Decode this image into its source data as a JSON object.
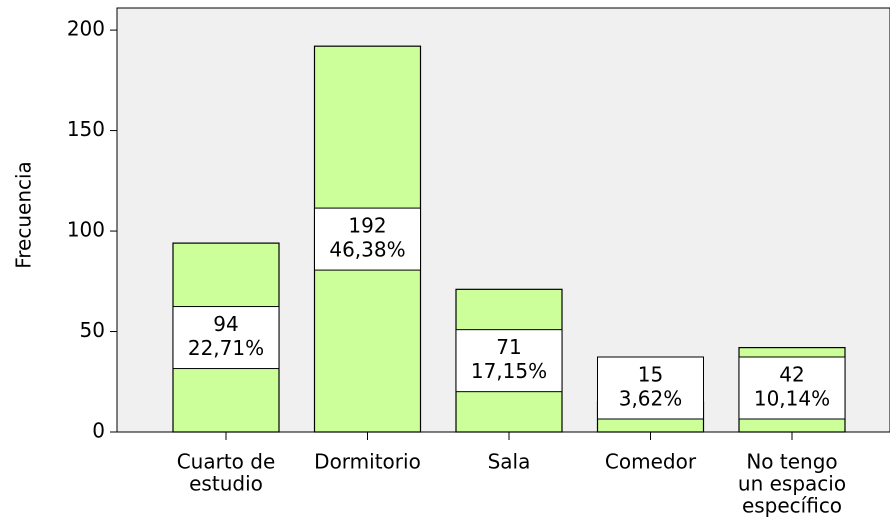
{
  "chart_data": {
    "type": "bar",
    "y_label": "Frecuencia",
    "categories": [
      [
        "Cuarto de",
        "estudio"
      ],
      [
        "Dormitorio"
      ],
      [
        "Sala"
      ],
      [
        "Comedor"
      ],
      [
        "No tengo",
        "un espacio",
        "específico"
      ]
    ],
    "values": [
      94,
      192,
      71,
      15,
      42
    ],
    "percent_labels": [
      "22,71%",
      "46,38%",
      "17,15%",
      "3,62%",
      "10,14%"
    ],
    "color": "#ccff99",
    "ylim": [
      0,
      211
    ],
    "yticks": [
      0,
      50,
      100,
      150,
      200
    ]
  }
}
